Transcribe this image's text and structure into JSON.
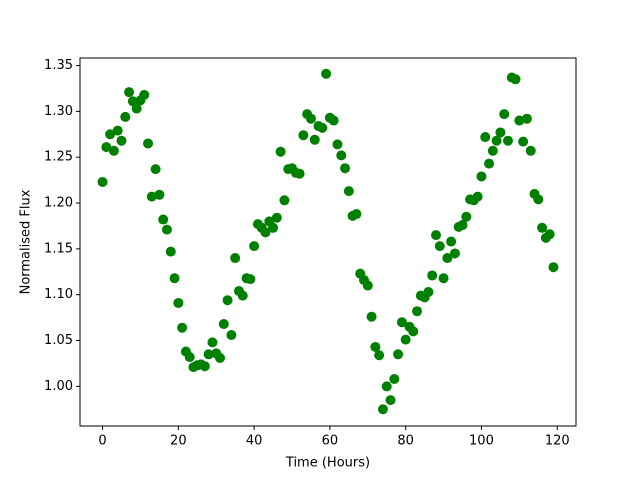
{
  "chart_data": {
    "type": "scatter",
    "x_label": "Time (Hours)",
    "y_label": "Normalised Flux",
    "color": "#008000",
    "grid": false,
    "xlim": [
      -5.95,
      124.95
    ],
    "ylim": [
      0.95675,
      1.35825
    ],
    "xticks": [
      0,
      20,
      40,
      60,
      80,
      100,
      120
    ],
    "yticks": [
      {
        "value": 1.0,
        "label": "1.00"
      },
      1.05,
      {
        "value": 1.1,
        "label": "1.10"
      },
      1.15,
      {
        "value": 1.2,
        "label": "1.20"
      },
      1.25,
      {
        "value": 1.3,
        "label": "1.30"
      },
      1.35
    ],
    "x": [
      0,
      1,
      2,
      3,
      4,
      5,
      6,
      7,
      8,
      9,
      10,
      11,
      12,
      13,
      14,
      15,
      16,
      17,
      18,
      19,
      20,
      21,
      22,
      23,
      24,
      25,
      26,
      27,
      28,
      29,
      30,
      31,
      32,
      33,
      34,
      35,
      36,
      37,
      38,
      39,
      40,
      41,
      42,
      43,
      44,
      45,
      46,
      47,
      48,
      49,
      50,
      51,
      52,
      53,
      54,
      55,
      56,
      57,
      58,
      59,
      60,
      61,
      62,
      63,
      64,
      65,
      66,
      67,
      68,
      69,
      70,
      71,
      72,
      73,
      74,
      75,
      76,
      77,
      78,
      79,
      80,
      81,
      82,
      83,
      84,
      85,
      86,
      87,
      88,
      89,
      90,
      91,
      92,
      93,
      94,
      95,
      96,
      97,
      98,
      99,
      100,
      101,
      102,
      103,
      104,
      105,
      106,
      107,
      108,
      109,
      110,
      111,
      112,
      113,
      114,
      115,
      116,
      117,
      118,
      119
    ],
    "values": [
      1.223,
      1.261,
      1.275,
      1.257,
      1.279,
      1.268,
      1.294,
      1.321,
      1.311,
      1.303,
      1.312,
      1.318,
      1.265,
      1.207,
      1.237,
      1.209,
      1.182,
      1.171,
      1.147,
      1.118,
      1.091,
      1.064,
      1.038,
      1.032,
      1.021,
      1.023,
      1.024,
      1.022,
      1.035,
      1.048,
      1.036,
      1.031,
      1.068,
      1.094,
      1.056,
      1.14,
      1.104,
      1.099,
      1.118,
      1.117,
      1.153,
      1.177,
      1.173,
      1.168,
      1.18,
      1.173,
      1.184,
      1.256,
      1.203,
      1.237,
      1.238,
      1.233,
      1.232,
      1.274,
      1.297,
      1.292,
      1.269,
      1.284,
      1.282,
      1.341,
      1.293,
      1.29,
      1.264,
      1.252,
      1.238,
      1.213,
      1.186,
      1.188,
      1.123,
      1.116,
      1.11,
      1.076,
      1.043,
      1.034,
      0.975,
      1.0,
      0.985,
      1.008,
      1.035,
      1.07,
      1.051,
      1.065,
      1.06,
      1.082,
      1.099,
      1.097,
      1.103,
      1.121,
      1.165,
      1.153,
      1.118,
      1.14,
      1.158,
      1.145,
      1.174,
      1.176,
      1.185,
      1.204,
      1.203,
      1.207,
      1.229,
      1.272,
      1.243,
      1.257,
      1.268,
      1.277,
      1.297,
      1.268,
      1.337,
      1.335,
      1.29,
      1.267,
      1.292,
      1.257,
      1.21,
      1.204,
      1.173,
      1.162,
      1.166,
      1.13
    ]
  }
}
